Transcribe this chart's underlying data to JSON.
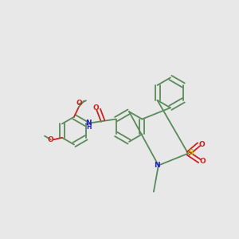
{
  "background_color": "#e8e8e8",
  "bond_color": "#5a8a5a",
  "n_color": "#2020cc",
  "o_color": "#cc2020",
  "s_color": "#bbbb00",
  "figsize": [
    3.0,
    3.0
  ],
  "dpi": 100,
  "lw": 1.3,
  "sep": 0.01,
  "ring_r": 0.073
}
